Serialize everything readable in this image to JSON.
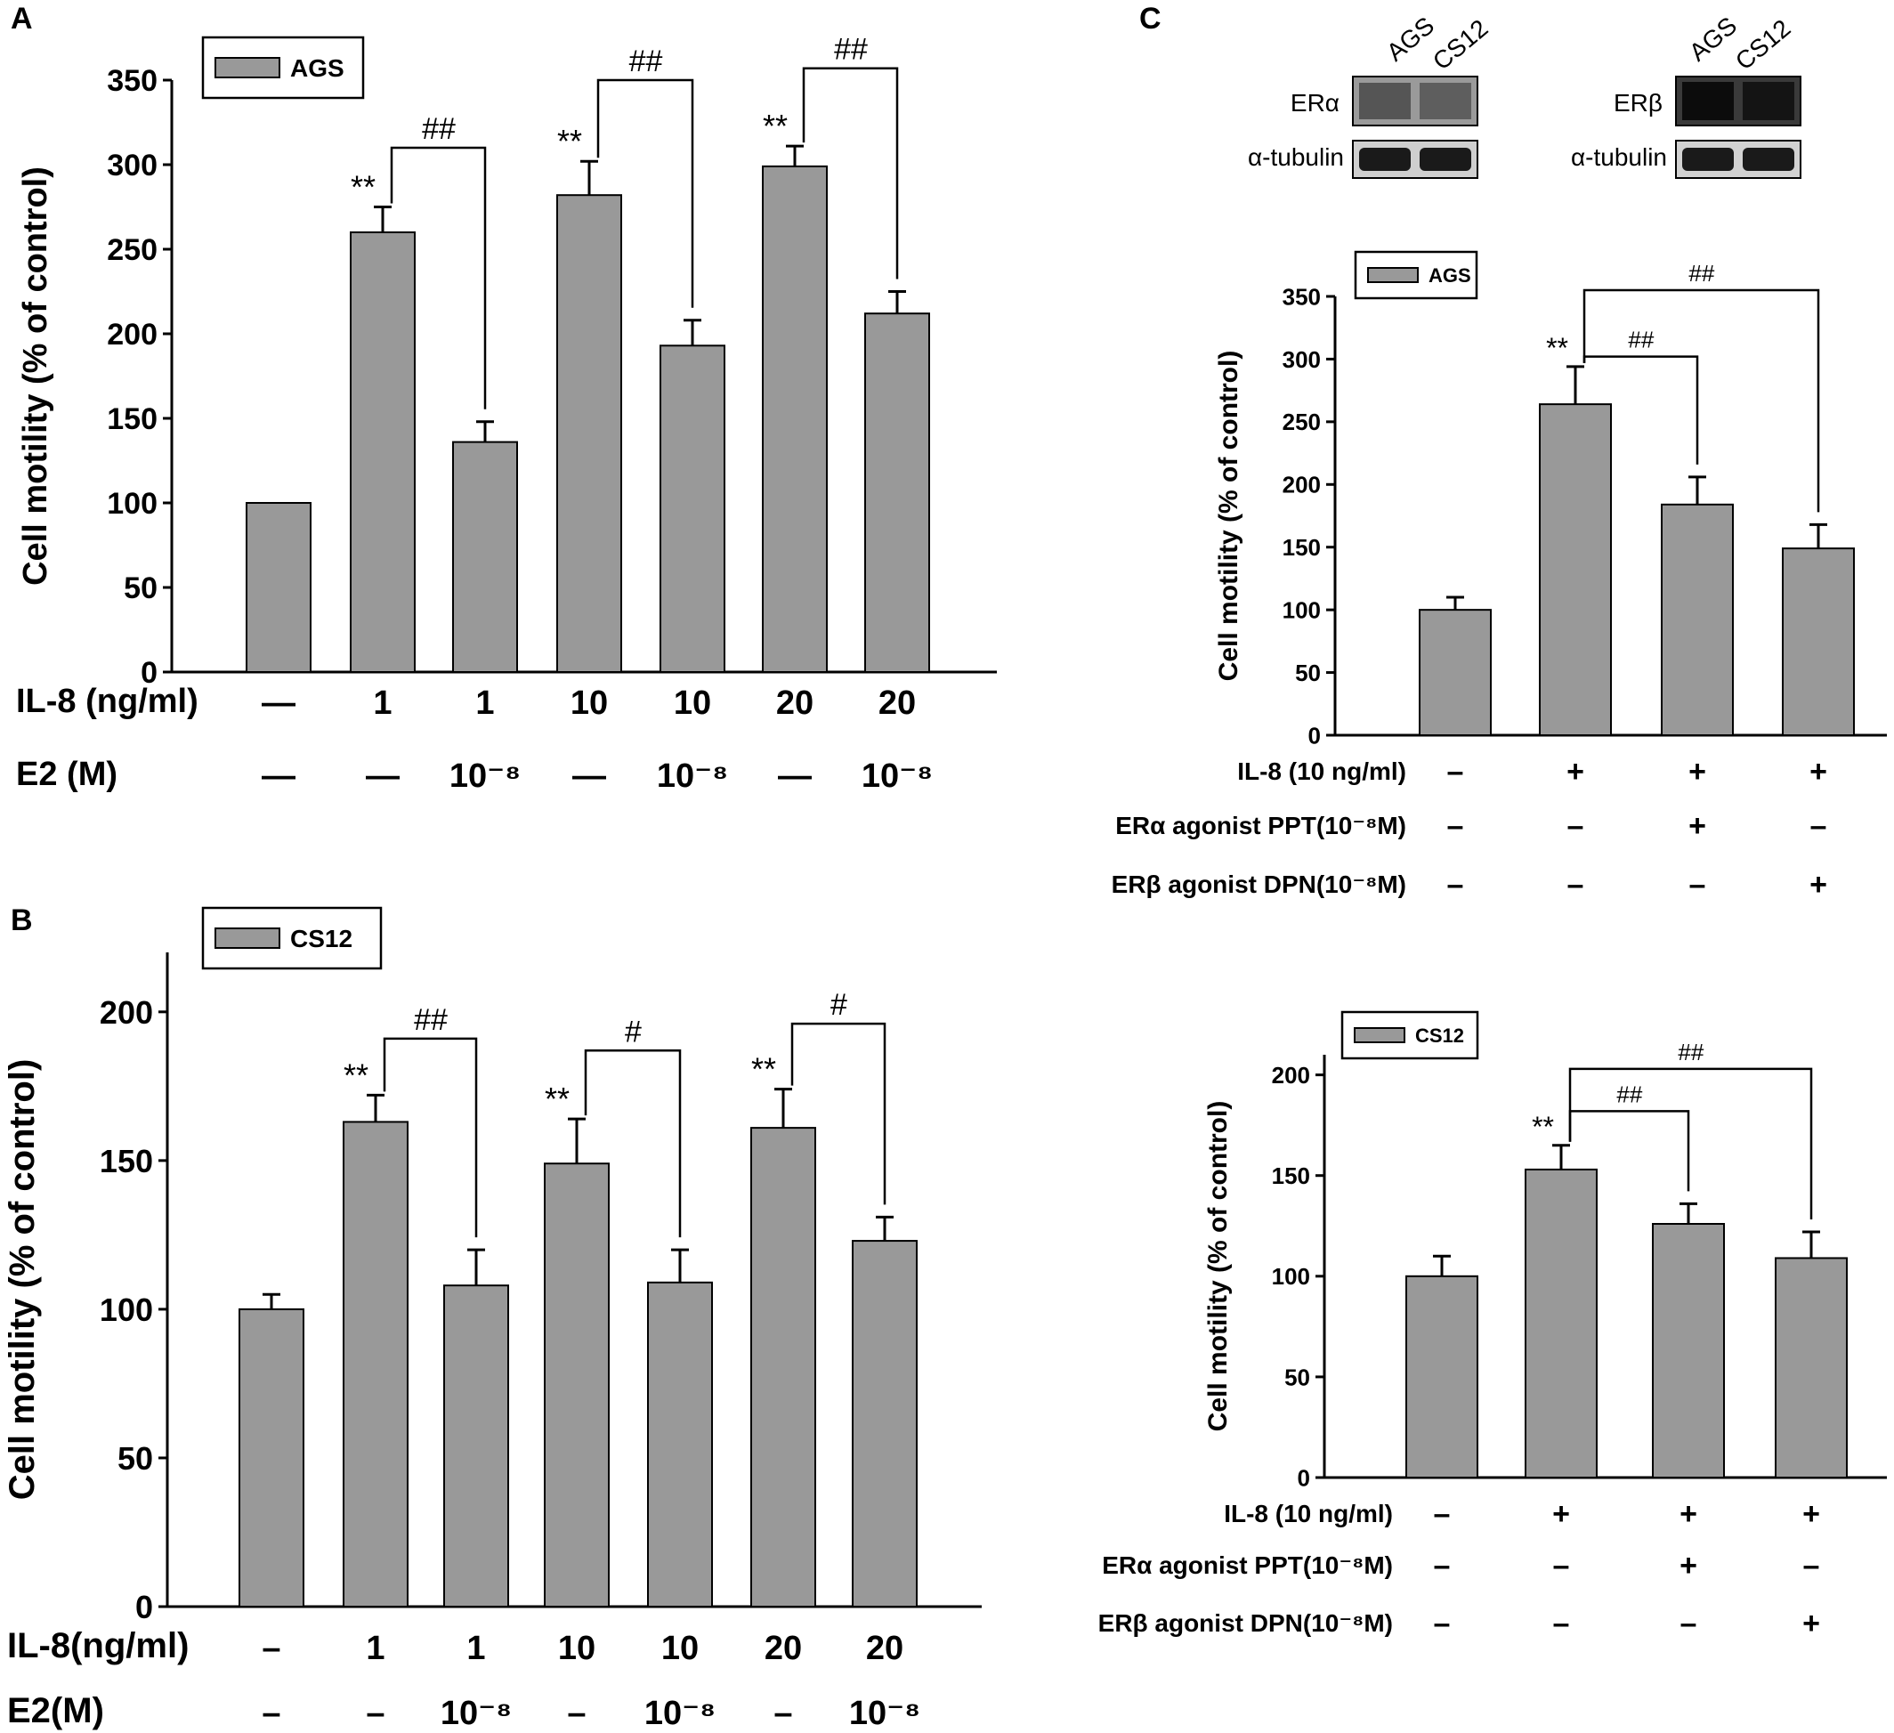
{
  "panel_labels": {
    "a": "A",
    "b": "B",
    "c": "C"
  },
  "blots": {
    "lanes": [
      "AGS",
      "CS12"
    ],
    "left": {
      "target": "ERα",
      "control": "α-tubulin"
    },
    "right": {
      "target": "ERβ",
      "control": "α-tubulin"
    }
  },
  "chart_data": [
    {
      "id": "A",
      "type": "bar",
      "legend": "AGS",
      "ylabel": "Cell motility (% of control)",
      "ylim": [
        0,
        350
      ],
      "yticks": [
        0,
        50,
        100,
        150,
        200,
        250,
        300,
        350
      ],
      "values": [
        100,
        260,
        136,
        282,
        193,
        299,
        212
      ],
      "errors": [
        0,
        15,
        12,
        20,
        15,
        12,
        13
      ],
      "rows": [
        {
          "label": "IL-8 (ng/ml)",
          "cells": [
            "—",
            "1",
            "1",
            "10",
            "10",
            "20",
            "20"
          ]
        },
        {
          "label": "E2 (M)",
          "cells": [
            "—",
            "—",
            "10⁻⁸",
            "—",
            "10⁻⁸",
            "—",
            "10⁻⁸"
          ]
        }
      ],
      "stars": [
        {
          "bar": 1,
          "text": "**"
        },
        {
          "bar": 3,
          "text": "**"
        },
        {
          "bar": 5,
          "text": "**"
        }
      ],
      "brackets": [
        {
          "from": 1,
          "to": 2,
          "text": "##",
          "y": 310
        },
        {
          "from": 3,
          "to": 4,
          "text": "##",
          "y": 350
        },
        {
          "from": 5,
          "to": 6,
          "text": "##",
          "y": 357
        }
      ]
    },
    {
      "id": "B",
      "type": "bar",
      "legend": "CS12",
      "ylabel": "Cell motility (% of control)",
      "ylim": [
        0,
        220
      ],
      "yticks": [
        0,
        50,
        100,
        150,
        200
      ],
      "values": [
        100,
        163,
        108,
        149,
        109,
        161,
        123
      ],
      "errors": [
        5,
        9,
        12,
        15,
        11,
        13,
        8
      ],
      "rows": [
        {
          "label": "IL-8(ng/ml)",
          "cells": [
            "–",
            "1",
            "1",
            "10",
            "10",
            "20",
            "20"
          ]
        },
        {
          "label": "E2(M)",
          "cells": [
            "–",
            "–",
            "10⁻⁸",
            "–",
            "10⁻⁸",
            "–",
            "10⁻⁸"
          ]
        }
      ],
      "stars": [
        {
          "bar": 1,
          "text": "**"
        },
        {
          "bar": 3,
          "text": "**"
        },
        {
          "bar": 5,
          "text": "**"
        }
      ],
      "brackets": [
        {
          "from": 1,
          "to": 2,
          "text": "##",
          "y": 191
        },
        {
          "from": 3,
          "to": 4,
          "text": "#",
          "y": 187
        },
        {
          "from": 5,
          "to": 6,
          "text": "#",
          "y": 196
        }
      ]
    },
    {
      "id": "C-AGS",
      "type": "bar",
      "legend": "AGS",
      "ylabel": "Cell motility (% of control)",
      "ylim": [
        0,
        350
      ],
      "yticks": [
        0,
        50,
        100,
        150,
        200,
        250,
        300,
        350
      ],
      "values": [
        100,
        264,
        184,
        149
      ],
      "errors": [
        10,
        30,
        22,
        19
      ],
      "rows": [
        {
          "label": "IL-8 (10 ng/ml)",
          "cells": [
            "–",
            "+",
            "+",
            "+"
          ]
        },
        {
          "label": "ERα agonist PPT(10⁻⁸M)",
          "cells": [
            "–",
            "–",
            "+",
            "–"
          ]
        },
        {
          "label": "ERβ agonist DPN(10⁻⁸M)",
          "cells": [
            "–",
            "–",
            "–",
            "+"
          ]
        }
      ],
      "stars": [
        {
          "bar": 1,
          "text": "**"
        }
      ],
      "brackets": [
        {
          "from": 1,
          "to": 2,
          "text": "##",
          "y": 302
        },
        {
          "from": 1,
          "to": 3,
          "text": "##",
          "y": 355
        }
      ]
    },
    {
      "id": "C-CS12",
      "type": "bar",
      "legend": "CS12",
      "ylabel": "Cell motility (% of control)",
      "ylim": [
        0,
        210
      ],
      "yticks": [
        0,
        50,
        100,
        150,
        200
      ],
      "values": [
        100,
        153,
        126,
        109
      ],
      "errors": [
        10,
        12,
        10,
        13
      ],
      "rows": [
        {
          "label": "IL-8 (10 ng/ml)",
          "cells": [
            "–",
            "+",
            "+",
            "+"
          ]
        },
        {
          "label": "ERα agonist PPT(10⁻⁸M)",
          "cells": [
            "–",
            "–",
            "+",
            "–"
          ]
        },
        {
          "label": "ERβ agonist DPN(10⁻⁸M)",
          "cells": [
            "–",
            "–",
            "–",
            "+"
          ]
        }
      ],
      "stars": [
        {
          "bar": 1,
          "text": "**"
        }
      ],
      "brackets": [
        {
          "from": 1,
          "to": 2,
          "text": "##",
          "y": 182
        },
        {
          "from": 1,
          "to": 3,
          "text": "##",
          "y": 203
        }
      ]
    }
  ]
}
